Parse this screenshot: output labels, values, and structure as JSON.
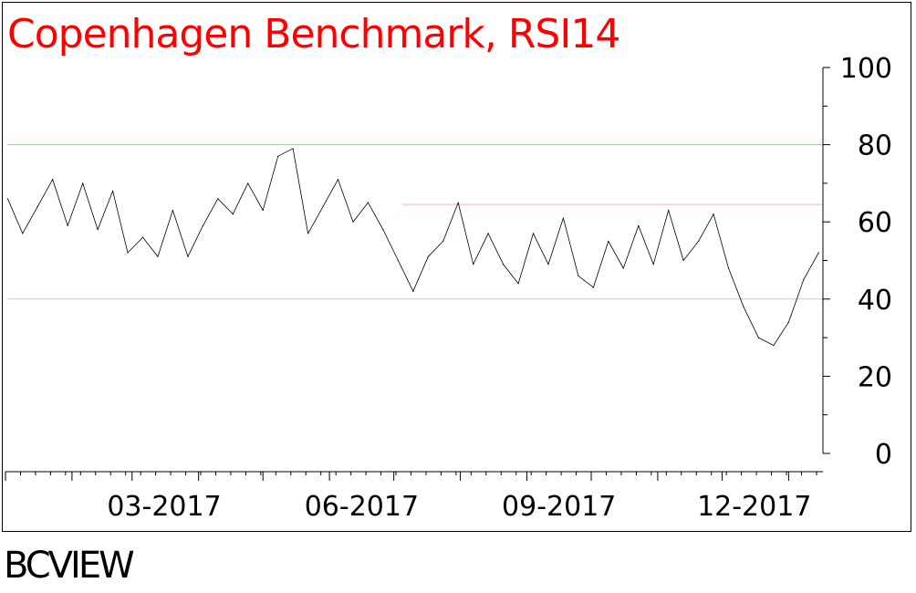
{
  "title": "Copenhagen Benchmark, RSI14",
  "footer": "BCVIEW",
  "colors": {
    "title": "#ff0000",
    "line": "#000000",
    "overbought_line": "#99cc99",
    "oversold_line": "#cccccc",
    "resistance_line": "#e6b8c8"
  },
  "chart_data": {
    "type": "line",
    "title": "Copenhagen Benchmark, RSI14",
    "xlabel": "",
    "ylabel": "",
    "ylim": [
      0,
      100
    ],
    "y_ticks": [
      "0",
      "20",
      "40",
      "60",
      "80",
      "100"
    ],
    "x_tick_labels": [
      "03-2017",
      "06-2017",
      "09-2017",
      "12-2017"
    ],
    "reference_lines": [
      {
        "y": 80,
        "color": "#99cc99",
        "from": "2017-01-02",
        "to": "2018-01-15"
      },
      {
        "y": 40,
        "color": "#cccccc",
        "from": "2017-01-02",
        "to": "2018-01-15"
      },
      {
        "y": 64.5,
        "color": "#e6b8c8",
        "from": "2017-07-05",
        "to": "2018-01-15"
      }
    ],
    "grid": false,
    "series": [
      {
        "name": "",
        "x": [
          "2017-01-02",
          "2017-01-09",
          "2017-01-16",
          "2017-01-23",
          "2017-01-30",
          "2017-02-06",
          "2017-02-13",
          "2017-02-20",
          "2017-02-27",
          "2017-03-06",
          "2017-03-13",
          "2017-03-20",
          "2017-03-27",
          "2017-04-03",
          "2017-04-10",
          "2017-04-17",
          "2017-04-24",
          "2017-05-01",
          "2017-05-08",
          "2017-05-15",
          "2017-05-22",
          "2017-05-29",
          "2017-06-05",
          "2017-06-12",
          "2017-06-19",
          "2017-06-26",
          "2017-07-03",
          "2017-07-10",
          "2017-07-17",
          "2017-07-24",
          "2017-07-31",
          "2017-08-07",
          "2017-08-14",
          "2017-08-21",
          "2017-08-28",
          "2017-09-04",
          "2017-09-11",
          "2017-09-18",
          "2017-09-25",
          "2017-10-02",
          "2017-10-09",
          "2017-10-16",
          "2017-10-23",
          "2017-10-30",
          "2017-11-06",
          "2017-11-13",
          "2017-11-20",
          "2017-11-27",
          "2017-12-04",
          "2017-12-11",
          "2017-12-18",
          "2017-12-25",
          "2018-01-01",
          "2018-01-08",
          "2018-01-15"
        ],
        "y": [
          66,
          57,
          64,
          71,
          59,
          70,
          58,
          68,
          52,
          56,
          51,
          63,
          51,
          59,
          66,
          62,
          70,
          63,
          77,
          79,
          57,
          64,
          71,
          60,
          65,
          58,
          50,
          42,
          51,
          55,
          65,
          49,
          57,
          49,
          44,
          57,
          49,
          61,
          46,
          43,
          55,
          48,
          59,
          49,
          63,
          50,
          55,
          62,
          48,
          38,
          30,
          28,
          34,
          45,
          52
        ]
      }
    ]
  }
}
